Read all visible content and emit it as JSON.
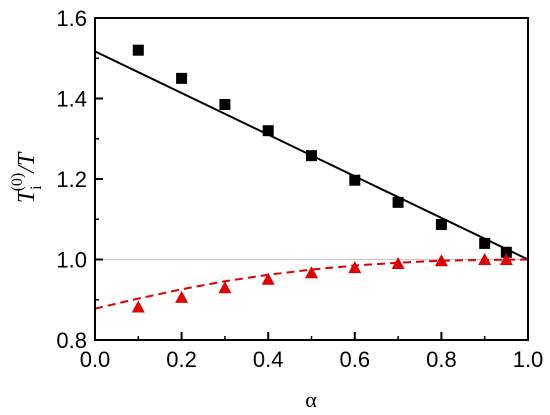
{
  "chart_data": {
    "type": "scatter",
    "xlabel": "α",
    "ylabel": {
      "base": "T",
      "subscript": "i",
      "superscript": "(0)",
      "denominator": "/T"
    },
    "xlim": [
      0.0,
      1.0
    ],
    "ylim": [
      0.8,
      1.6
    ],
    "xticks": [
      "0.0",
      "0.2",
      "0.4",
      "0.6",
      "0.8",
      "1.0"
    ],
    "yticks": [
      "0.8",
      "1.0",
      "1.2",
      "1.4",
      "1.6"
    ],
    "grid": false,
    "reference_line": {
      "y": 1.0,
      "color": "#c8c8c8"
    },
    "series": [
      {
        "marker": "square",
        "color": "#000000",
        "points": [
          [
            0.1,
            1.52
          ],
          [
            0.2,
            1.45
          ],
          [
            0.3,
            1.385
          ],
          [
            0.4,
            1.32
          ],
          [
            0.5,
            1.258
          ],
          [
            0.6,
            1.197
          ],
          [
            0.7,
            1.142
          ],
          [
            0.8,
            1.087
          ],
          [
            0.9,
            1.04
          ],
          [
            0.95,
            1.018
          ]
        ]
      },
      {
        "marker": "triangle",
        "color": "#e00000",
        "points": [
          [
            0.1,
            0.882
          ],
          [
            0.2,
            0.906
          ],
          [
            0.3,
            0.93
          ],
          [
            0.4,
            0.951
          ],
          [
            0.5,
            0.967
          ],
          [
            0.6,
            0.98
          ],
          [
            0.7,
            0.99
          ],
          [
            0.8,
            0.997
          ],
          [
            0.9,
            1.0
          ],
          [
            0.95,
            1.0
          ]
        ]
      },
      {
        "line": "solid",
        "color": "#000000",
        "points": [
          [
            0.0,
            1.517
          ],
          [
            1.0,
            1.0
          ]
        ]
      },
      {
        "line": "dashed",
        "color": "#e00000",
        "points": [
          [
            0.0,
            0.878
          ],
          [
            0.1,
            0.903
          ],
          [
            0.2,
            0.926
          ],
          [
            0.3,
            0.946
          ],
          [
            0.4,
            0.962
          ],
          [
            0.5,
            0.975
          ],
          [
            0.6,
            0.985
          ],
          [
            0.7,
            0.992
          ],
          [
            0.8,
            0.997
          ],
          [
            0.9,
            0.999
          ],
          [
            1.0,
            1.0
          ]
        ]
      }
    ]
  }
}
